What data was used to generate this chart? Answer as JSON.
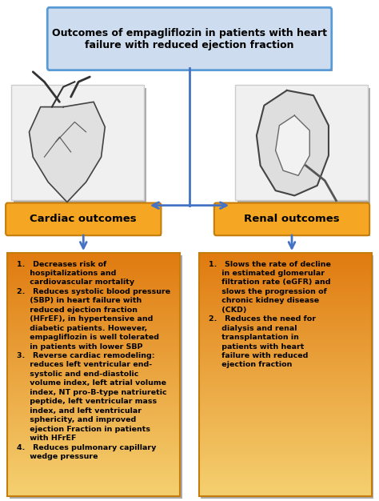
{
  "title": "Outcomes of empagliflozin in patients with heart\nfailure with reduced ejection fraction",
  "title_box_fc": "#cddcee",
  "title_box_ec": "#5b9bd5",
  "title_fontsize": 9.0,
  "cardiac_label": "Cardiac outcomes",
  "renal_label": "Renal outcomes",
  "label_box_fc": "#f5a623",
  "label_box_ec": "#c47d0a",
  "label_fontsize": 9.5,
  "cardiac_text": "1.   Decreases risk of\n     hospitalizations and\n     cardiovascular mortality\n2.   Reduces systolic blood pressure\n     (SBP) in heart failure with\n     reduced ejection fraction\n     (HFrEF), in hypertensive and\n     diabetic patients. However,\n     empagliflozin is well tolerated\n     in patients with lower SBP\n3.   Reverse cardiac remodeling:\n     reduces left ventricular end-\n     systolic and end-diastolic\n     volume index, left atrial volume\n     index, NT pro-B-type natriuretic\n     peptide, left ventricular mass\n     index, and left ventricular\n     sphericity, and improved\n     ejection Fraction in patients\n     with HFrEF\n4.   Reduces pulmonary capillary\n     wedge pressure",
  "renal_text": "1.   Slows the rate of decline\n     in estimated glomerular\n     filtration rate (eGFR) and\n     slows the progression of\n     chronic kidney disease\n     (CKD)\n2.   Reduces the need for\n     dialysis and renal\n     transplantation in\n     patients with heart\n     failure with reduced\n     ejection fraction",
  "text_color_top": "#e07b10",
  "text_color_bottom": "#f5d070",
  "text_fontsize": 6.8,
  "arrow_color": "#4472c4",
  "bg_color": "#ffffff",
  "shadow_color": "#888888"
}
